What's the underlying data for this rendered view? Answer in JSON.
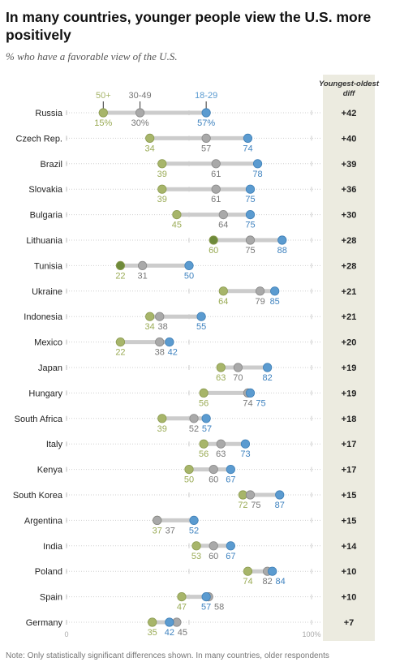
{
  "header": {
    "title": "In many countries, younger people view the U.S. more positively",
    "subtitle": "% who have a favorable view of the U.S."
  },
  "footer": {
    "note": "Note: Only statistically significant differences shown. In many countries, older respondents"
  },
  "colors": {
    "young": "#5b9bd0",
    "middle": "#a9a9a9",
    "old": "#a7b56a",
    "old_dark": "#6e8a3a",
    "diff_panel": "#ecebe0"
  },
  "chart_data": {
    "type": "dot-plot",
    "xlim": [
      0,
      100
    ],
    "x_tick_labels": [
      "0",
      "100%"
    ],
    "legend": {
      "old": "50+",
      "middle": "30-49",
      "young": "18-29"
    },
    "diff_header": "Youngest-oldest diff",
    "rows": [
      {
        "country": "Russia",
        "old": 15,
        "middle": 30,
        "young": 57,
        "old_label": "15%",
        "middle_label": "30%",
        "young_label": "57%",
        "diff": "+42"
      },
      {
        "country": "Czech Rep.",
        "old": 34,
        "middle": 57,
        "young": 74,
        "old_label": "34",
        "middle_label": "57",
        "young_label": "74",
        "diff": "+40"
      },
      {
        "country": "Brazil",
        "old": 39,
        "middle": 61,
        "young": 78,
        "old_label": "39",
        "middle_label": "61",
        "young_label": "78",
        "diff": "+39"
      },
      {
        "country": "Slovakia",
        "old": 39,
        "middle": 61,
        "young": 75,
        "old_label": "39",
        "middle_label": "61",
        "young_label": "75",
        "diff": "+36"
      },
      {
        "country": "Bulgaria",
        "old": 45,
        "middle": 64,
        "young": 75,
        "old_label": "45",
        "middle_label": "64",
        "young_label": "75",
        "diff": "+30"
      },
      {
        "country": "Lithuania",
        "old": 60,
        "middle": 75,
        "young": 88,
        "old_label": "60",
        "middle_label": "75",
        "young_label": "88",
        "diff": "+28",
        "old_dark": true
      },
      {
        "country": "Tunisia",
        "old": 22,
        "middle": 31,
        "young": 50,
        "old_label": "22",
        "middle_label": "31",
        "young_label": "50",
        "diff": "+28",
        "old_dark": true
      },
      {
        "country": "Ukraine",
        "old": 64,
        "middle": 79,
        "young": 85,
        "old_label": "64",
        "middle_label": "79",
        "young_label": "85",
        "diff": "+21"
      },
      {
        "country": "Indonesia",
        "old": 34,
        "middle": 38,
        "young": 55,
        "old_label": "34",
        "middle_label": "38",
        "young_label": "55",
        "diff": "+21"
      },
      {
        "country": "Mexico",
        "old": 22,
        "middle": 38,
        "young": 42,
        "old_label": "22",
        "middle_label": "38",
        "young_label": "42",
        "diff": "+20"
      },
      {
        "country": "Japan",
        "old": 63,
        "middle": 70,
        "young": 82,
        "old_label": "63",
        "middle_label": "70",
        "young_label": "82",
        "diff": "+19"
      },
      {
        "country": "Hungary",
        "old": 56,
        "middle": 74,
        "young": 75,
        "old_label": "56",
        "middle_label": "74",
        "young_label": "75",
        "diff": "+19"
      },
      {
        "country": "South Africa",
        "old": 39,
        "middle": 52,
        "young": 57,
        "old_label": "39",
        "middle_label": "52",
        "young_label": "57",
        "diff": "+18"
      },
      {
        "country": "Italy",
        "old": 56,
        "middle": 63,
        "young": 73,
        "old_label": "56",
        "middle_label": "63",
        "young_label": "73",
        "diff": "+17"
      },
      {
        "country": "Kenya",
        "old": 50,
        "middle": 60,
        "young": 67,
        "old_label": "50",
        "middle_label": "60",
        "young_label": "67",
        "diff": "+17"
      },
      {
        "country": "South Korea",
        "old": 72,
        "middle": 75,
        "young": 87,
        "old_label": "72",
        "middle_label": "75",
        "young_label": "87",
        "diff": "+15"
      },
      {
        "country": "Argentina",
        "old": 37,
        "middle": 37,
        "young": 52,
        "old_label": "37",
        "middle_label": "37",
        "young_label": "52",
        "diff": "+15"
      },
      {
        "country": "India",
        "old": 53,
        "middle": 60,
        "young": 67,
        "old_label": "53",
        "middle_label": "60",
        "young_label": "67",
        "diff": "+14"
      },
      {
        "country": "Poland",
        "old": 74,
        "middle": 82,
        "young": 84,
        "old_label": "74",
        "middle_label": "82",
        "young_label": "84",
        "diff": "+10"
      },
      {
        "country": "Spain",
        "old": 47,
        "middle": 58,
        "young": 57,
        "old_label": "47",
        "middle_label": "58",
        "young_label": "57",
        "diff": "+10"
      },
      {
        "country": "Germany",
        "old": 35,
        "middle": 45,
        "young": 42,
        "old_label": "35",
        "middle_label": "45",
        "young_label": "42",
        "diff": "+7"
      }
    ]
  }
}
